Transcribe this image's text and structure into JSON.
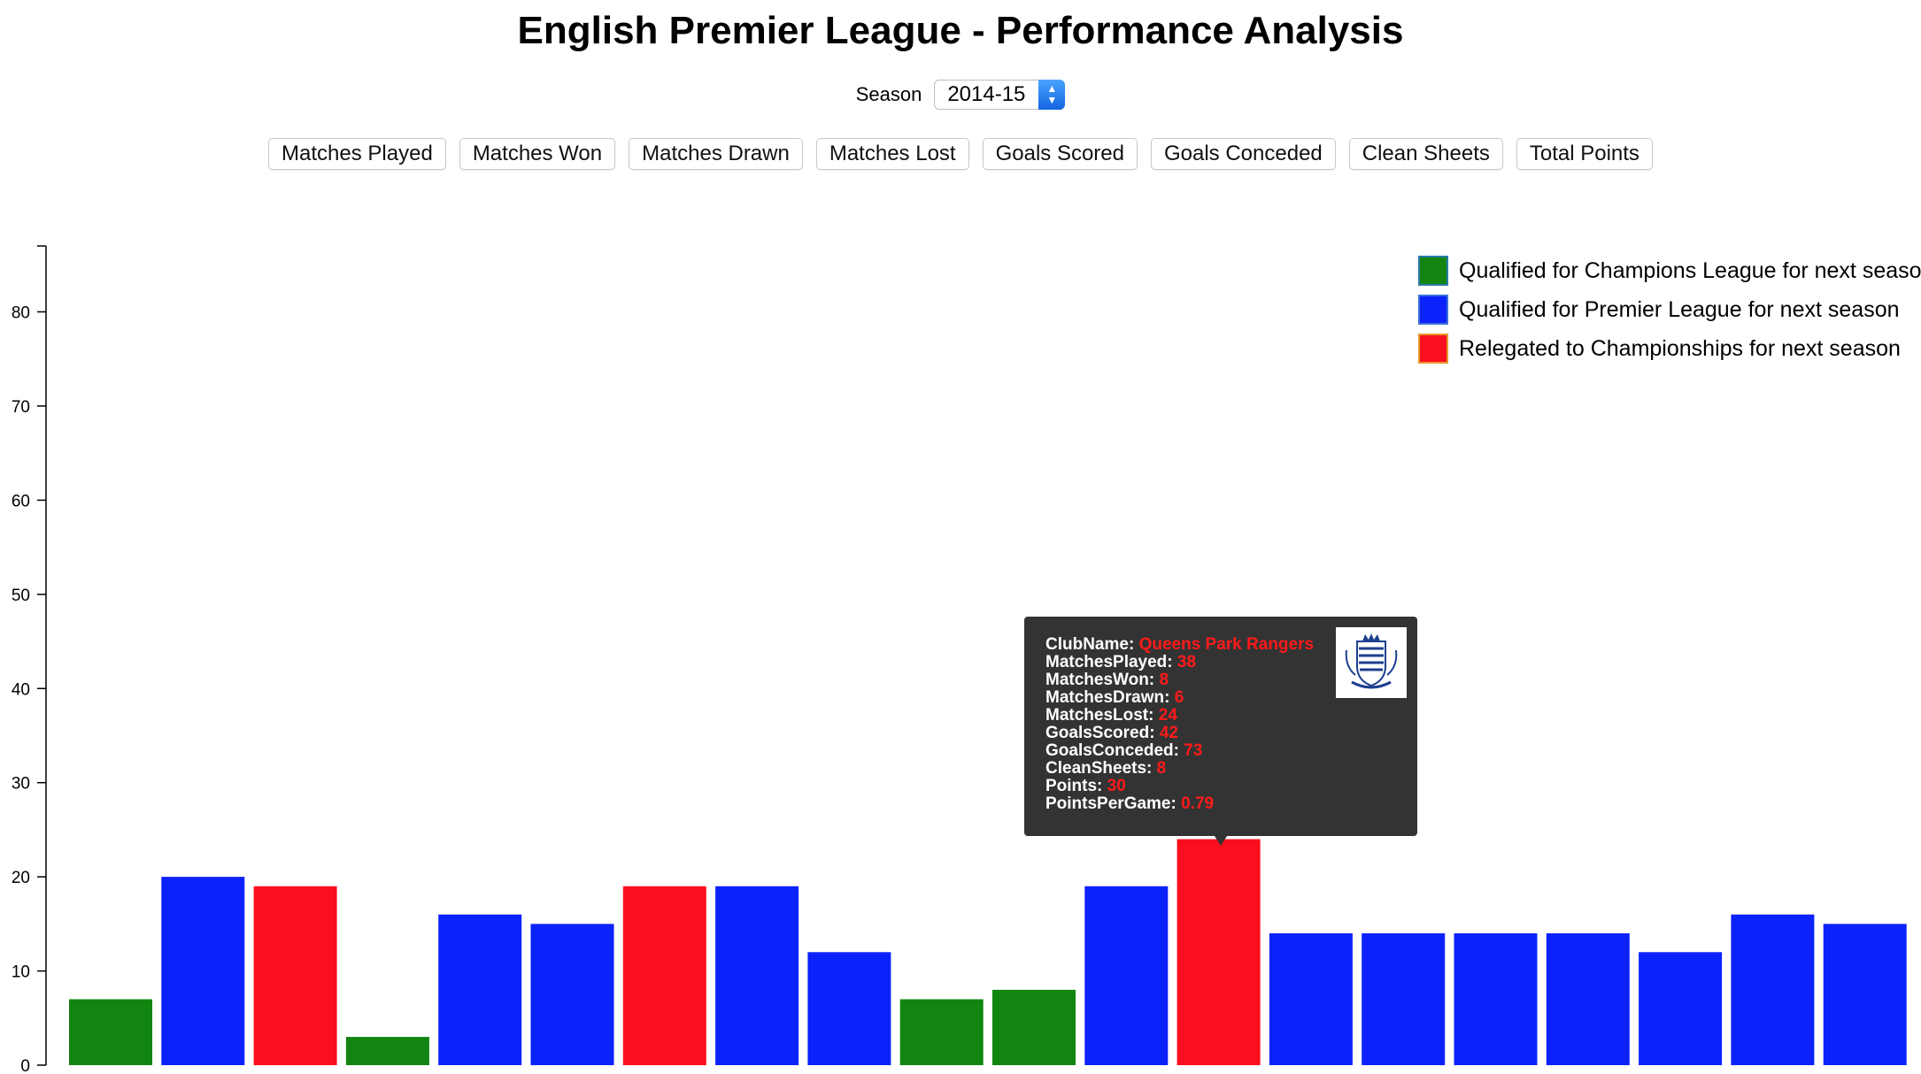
{
  "title": "English Premier League - Performance Analysis",
  "season": {
    "label": "Season",
    "value": "2014-15"
  },
  "metric_buttons": [
    "Matches Played",
    "Matches Won",
    "Matches Drawn",
    "Matches Lost",
    "Goals Scored",
    "Goals Conceded",
    "Clean Sheets",
    "Total Points"
  ],
  "colors": {
    "champions": "#118510",
    "premier": "#0c22fb",
    "relegated": "#fb0f1f",
    "tooltip_bg": "#333333",
    "tooltip_value": "#ff1a1a"
  },
  "legend": [
    {
      "key": "champions",
      "label": "Qualified for Champions League for next season"
    },
    {
      "key": "premier",
      "label": "Qualified for Premier League for next season"
    },
    {
      "key": "relegated",
      "label": "Relegated to Championships for next season"
    }
  ],
  "tooltip": {
    "crest_icon": "qpr-crest-icon",
    "rows": [
      {
        "label": "ClubName:",
        "value": "Queens Park Rangers"
      },
      {
        "label": "MatchesPlayed:",
        "value": "38"
      },
      {
        "label": "MatchesWon:",
        "value": "8"
      },
      {
        "label": "MatchesDrawn:",
        "value": "6"
      },
      {
        "label": "MatchesLost:",
        "value": "24"
      },
      {
        "label": "GoalsScored:",
        "value": "42"
      },
      {
        "label": "GoalsConceded:",
        "value": "73"
      },
      {
        "label": "CleanSheets:",
        "value": "8"
      },
      {
        "label": "Points:",
        "value": "30"
      },
      {
        "label": "PointsPerGame:",
        "value": "0.79"
      }
    ]
  },
  "chart_data": {
    "type": "bar",
    "ylim": [
      0,
      87
    ],
    "yticks": [
      0,
      10,
      20,
      30,
      40,
      50,
      60,
      70,
      80
    ],
    "values": [
      7,
      20,
      19,
      3,
      16,
      15,
      19,
      19,
      12,
      7,
      8,
      19,
      24,
      14,
      14,
      14,
      14,
      12,
      16,
      15
    ],
    "status": [
      "champions",
      "premier",
      "relegated",
      "champions",
      "premier",
      "premier",
      "relegated",
      "premier",
      "premier",
      "champions",
      "champions",
      "premier",
      "relegated",
      "premier",
      "premier",
      "premier",
      "premier",
      "premier",
      "premier",
      "premier"
    ],
    "highlighted_index": 12,
    "grid": false
  }
}
